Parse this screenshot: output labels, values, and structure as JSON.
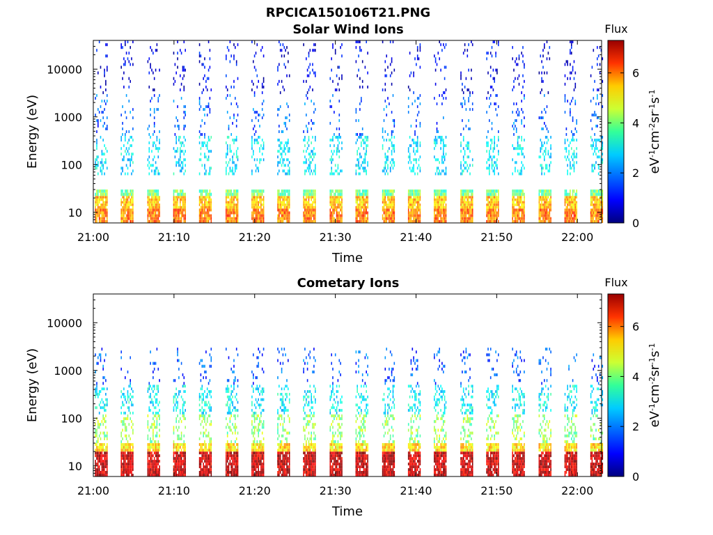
{
  "figure": {
    "title": "RPCICA150106T21.PNG"
  },
  "chart_data": [
    {
      "type": "heatmap",
      "title": "Solar Wind Ions",
      "xlabel": "Time",
      "ylabel": "Energy (eV)",
      "y_scale": "log",
      "x_range": [
        "21:00",
        "22:03"
      ],
      "y_range": [
        6,
        40000
      ],
      "x_ticks": [
        "21:00",
        "21:10",
        "21:20",
        "21:30",
        "21:40",
        "21:50",
        "22:00"
      ],
      "y_ticks": [
        10,
        100,
        1000,
        10000
      ],
      "y_tick_labels": [
        "10",
        "100",
        "1000",
        "10000"
      ],
      "colorbar": {
        "label": "Flux",
        "unit_label": "eV-1cm-2sr-1s-1",
        "range": [
          0,
          7.3
        ],
        "ticks": [
          0,
          2,
          4,
          6
        ],
        "tick_labels": [
          "0",
          "2",
          "4",
          "6"
        ],
        "colormap": "jet"
      },
      "sweep_starts_min": [
        0.2,
        3.4,
        6.7,
        9.9,
        13.1,
        16.4,
        19.6,
        22.8,
        26.0,
        29.3,
        32.5,
        35.8,
        39.0,
        42.2,
        45.5,
        48.7,
        51.9,
        55.2,
        58.4,
        61.6
      ],
      "bands": [
        {
          "e_min": 6,
          "e_max": 12,
          "flux": 5.5
        },
        {
          "e_min": 12,
          "e_max": 22,
          "flux": 5.0
        },
        {
          "e_min": 22,
          "e_max": 30,
          "flux": 3.6
        },
        {
          "e_min": 60,
          "e_max": 400,
          "flux": 2.6
        },
        {
          "e_min": 400,
          "e_max": 3000,
          "flux": 1.6
        },
        {
          "e_min": 3000,
          "e_max": 40000,
          "flux": 0.8
        }
      ]
    },
    {
      "type": "heatmap",
      "title": "Cometary Ions",
      "xlabel": "Time",
      "ylabel": "Energy (eV)",
      "y_scale": "log",
      "x_range": [
        "21:00",
        "22:03"
      ],
      "y_range": [
        6,
        40000
      ],
      "x_ticks": [
        "21:00",
        "21:10",
        "21:20",
        "21:30",
        "21:40",
        "21:50",
        "22:00"
      ],
      "y_ticks": [
        10,
        100,
        1000,
        10000
      ],
      "y_tick_labels": [
        "10",
        "100",
        "1000",
        "10000"
      ],
      "colorbar": {
        "label": "Flux",
        "unit_label": "eV-1cm-2sr-1s-1",
        "range": [
          0,
          7.3
        ],
        "ticks": [
          0,
          2,
          4,
          6
        ],
        "tick_labels": [
          "0",
          "2",
          "4",
          "6"
        ],
        "colormap": "jet"
      },
      "sweep_starts_min": [
        0.2,
        3.4,
        6.7,
        9.9,
        13.1,
        16.4,
        19.6,
        22.8,
        26.0,
        29.3,
        32.5,
        35.8,
        39.0,
        42.2,
        45.5,
        48.7,
        51.9,
        55.2,
        58.4,
        61.6
      ],
      "bands": [
        {
          "e_min": 6,
          "e_max": 20,
          "flux": 6.8
        },
        {
          "e_min": 20,
          "e_max": 30,
          "flux": 4.8
        },
        {
          "e_min": 30,
          "e_max": 120,
          "flux": 3.8
        },
        {
          "e_min": 120,
          "e_max": 500,
          "flux": 2.7
        },
        {
          "e_min": 500,
          "e_max": 3000,
          "flux": 1.5
        }
      ]
    }
  ]
}
